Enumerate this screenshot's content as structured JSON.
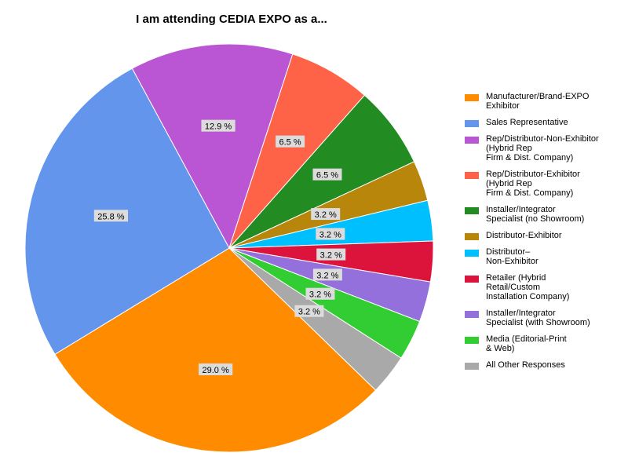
{
  "chart_data": {
    "type": "pie",
    "title": "I am attending CEDIA EXPO as a...",
    "legend_position": "right",
    "slices": [
      {
        "label": "Manufacturer/Brand-EXPO\nExhibitor",
        "value": 29.0,
        "color": "#ff8c00",
        "data_label": "29.0 %"
      },
      {
        "label": "Sales Representative",
        "value": 25.8,
        "color": "#6495ed",
        "data_label": "25.8 %"
      },
      {
        "label": "Rep/Distributor-Non-Exhibitor\n(Hybrid Rep\nFirm & Dist. Company)",
        "value": 12.9,
        "color": "#ba55d3",
        "data_label": "12.9 %"
      },
      {
        "label": "Rep/Distributor-Exhibitor\n(Hybrid Rep\nFirm & Dist. Company)",
        "value": 6.5,
        "color": "#ff6347",
        "data_label": "6.5 %"
      },
      {
        "label": "Installer/Integrator\nSpecialist (no Showroom)",
        "value": 6.5,
        "color": "#228b22",
        "data_label": "6.5 %"
      },
      {
        "label": "Distributor-Exhibitor",
        "value": 3.2,
        "color": "#b8860b",
        "data_label": "3.2 %"
      },
      {
        "label": "Distributor–\nNon-Exhibitor",
        "value": 3.2,
        "color": "#00bfff",
        "data_label": "3.2 %"
      },
      {
        "label": "Retailer (Hybrid\nRetail/Custom\nInstallation Company)",
        "value": 3.2,
        "color": "#dc143c",
        "data_label": "3.2 %"
      },
      {
        "label": "Installer/Integrator\nSpecialist (with Showroom)",
        "value": 3.2,
        "color": "#9370db",
        "data_label": "3.2 %"
      },
      {
        "label": "Media (Editorial-Print\n& Web)",
        "value": 3.2,
        "color": "#32cd32",
        "data_label": "3.2 %"
      },
      {
        "label": "All Other Responses",
        "value": 3.2,
        "color": "#a9a9a9",
        "data_label": "3.2 %"
      }
    ]
  }
}
